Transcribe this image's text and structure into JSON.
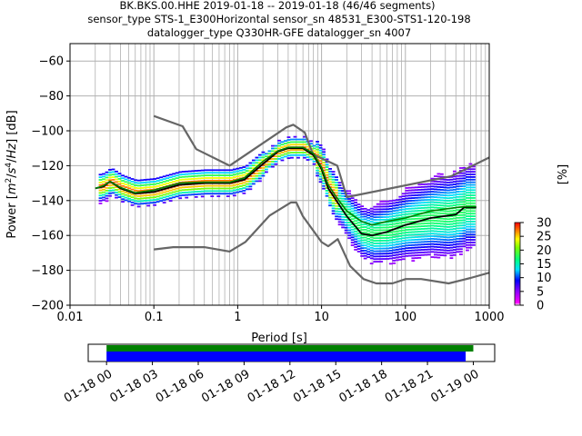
{
  "title_lines": [
    "BK.BKS.00.HHE   2019-01-18 -- 2019-01-18  (46/46 segments)",
    "sensor_type STS-1_E300Horizontal sensor_sn 48531_E300-STS1-120-198",
    "datalogger_type Q330HR-GFE datalogger_sn 4007"
  ],
  "chart_data": [
    {
      "type": "heatmap",
      "xlabel": "Period [s]",
      "ylabel": "Power [m^2/s^4/Hz] [dB]",
      "xscale": "log",
      "xlim": [
        0.01,
        1000
      ],
      "ylim": [
        -200,
        -50
      ],
      "xticks": [
        0.01,
        0.1,
        1,
        10,
        100,
        1000
      ],
      "xtick_labels": [
        "0.01",
        "0.1",
        "1",
        "10",
        "100",
        "1000"
      ],
      "yticks": [
        -200,
        -180,
        -160,
        -140,
        -120,
        -100,
        -80,
        -60
      ],
      "ytick_labels": [
        "−200",
        "−180",
        "−160",
        "−140",
        "−120",
        "−100",
        "−80",
        "−60"
      ],
      "grid": true,
      "colorbar": {
        "label": "[%]",
        "range": [
          0,
          30
        ],
        "ticks": [
          0,
          5,
          10,
          15,
          20,
          25,
          30
        ],
        "tick_labels": [
          "0",
          "5",
          "10",
          "15",
          "20",
          "25",
          "30"
        ],
        "cmap": "pqlx"
      },
      "series": [
        {
          "name": "",
          "role": "noise-model-high",
          "color": "#666666",
          "x": [
            0.1,
            0.22,
            0.32,
            0.8,
            3.8,
            4.6,
            6.3,
            7.9,
            15.4,
            20,
            354.8,
            10000
          ],
          "y": [
            -91.5,
            -97.4,
            -110.5,
            -120,
            -98,
            -96.5,
            -101,
            -113.5,
            -120,
            -138,
            -126,
            -91.5
          ]
        },
        {
          "name": "",
          "role": "noise-model-low",
          "color": "#666666",
          "x": [
            0.1,
            0.17,
            0.4,
            0.8,
            1.24,
            2.4,
            4.3,
            5.0,
            6.0,
            10,
            12,
            15.6,
            21.9,
            31.6,
            45,
            70,
            101,
            154,
            328,
            600,
            10000
          ],
          "y": [
            -168,
            -166.7,
            -166.7,
            -169.2,
            -163.7,
            -148.6,
            -141.1,
            -141.1,
            -149,
            -163.8,
            -166.2,
            -162.1,
            -177.5,
            -185,
            -187.5,
            -187.5,
            -185,
            -185,
            -187.5,
            -184.4,
            -168
          ]
        },
        {
          "name": "",
          "role": "mode",
          "color": "#000000",
          "x": [
            0.02,
            0.025,
            0.03,
            0.04,
            0.06,
            0.1,
            0.2,
            0.4,
            0.8,
            1.2,
            2,
            3,
            4,
            6,
            8,
            10,
            12,
            15,
            20,
            30,
            40,
            60,
            100,
            200,
            400,
            500,
            700
          ],
          "y": [
            -133,
            -132,
            -129,
            -133,
            -136,
            -135,
            -131,
            -130,
            -130,
            -128,
            -119,
            -112,
            -110,
            -110,
            -114,
            -122,
            -133,
            -140,
            -149,
            -159,
            -160,
            -158,
            -154,
            -150,
            -148,
            -144,
            -144
          ]
        },
        {
          "name": "",
          "role": "mean",
          "color": "#008000",
          "x": [
            0.02,
            0.025,
            0.03,
            0.04,
            0.06,
            0.1,
            0.2,
            0.4,
            0.8,
            1.2,
            2,
            3,
            4,
            6,
            8,
            10,
            12,
            15,
            20,
            30,
            40,
            60,
            100,
            200,
            400,
            500,
            700
          ],
          "y": [
            -133,
            -131.5,
            -129,
            -132.5,
            -135.5,
            -134,
            -130,
            -129.5,
            -129.5,
            -127,
            -117.5,
            -111.5,
            -109.5,
            -109.5,
            -113,
            -121,
            -131,
            -138,
            -146,
            -152,
            -154,
            -152,
            -150,
            -146,
            -144,
            -143.5,
            -143.5
          ]
        }
      ],
      "density_min_percent": 0.5
    },
    {
      "type": "timeline",
      "xlabel": "",
      "xlim": [
        "2019-01-17 22:48",
        "2019-01-19 01:24"
      ],
      "xticks": [
        "2019-01-18 00:00",
        "2019-01-18 03:00",
        "2019-01-18 06:00",
        "2019-01-18 09:00",
        "2019-01-18 12:00",
        "2019-01-18 15:00",
        "2019-01-18 18:00",
        "2019-01-18 21:00",
        "2019-01-19 00:00"
      ],
      "xtick_labels": [
        "01-18 00",
        "01-18 03",
        "01-18 06",
        "01-18 09",
        "01-18 12",
        "01-18 15",
        "01-18 18",
        "01-18 21",
        "01-19 00"
      ],
      "series": [
        {
          "name": "",
          "role": "data-coverage",
          "color": "#008000",
          "start": "2019-01-18 00:00",
          "end": "2019-01-19 00:00"
        },
        {
          "name": "",
          "role": "psd-coverage",
          "color": "#0000ff",
          "start": "2019-01-18 00:00",
          "end": "2019-01-18 23:30"
        }
      ]
    }
  ]
}
